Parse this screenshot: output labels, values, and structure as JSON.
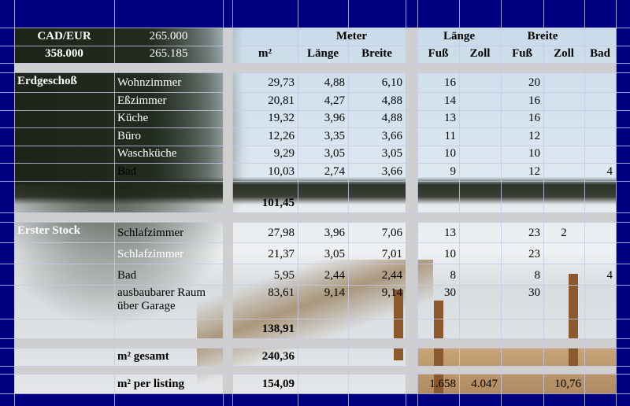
{
  "header": {
    "currency_label": "CAD/EUR",
    "value_top": "265.000",
    "value_cad": "358.000",
    "value_eur": "265.185",
    "group_meter": "Meter",
    "group_laenge": "Länge",
    "group_breite": "Breite",
    "columns": [
      "m²",
      "Länge",
      "Breite",
      "Fuß",
      "Zoll",
      "Fuß",
      "Zoll",
      "Bad"
    ]
  },
  "rows": [
    {
      "section": "Erdgeschoß",
      "room": "Wohnzimmer",
      "m2": "29,73",
      "m_laenge": "4,88",
      "m_breite": "6,10",
      "fuss_l": "16",
      "zoll_l": "",
      "fuss_b": "20",
      "zoll_b": "",
      "bad": ""
    },
    {
      "section": "",
      "room": "Eßzimmer",
      "m2": "20,81",
      "m_laenge": "4,27",
      "m_breite": "4,88",
      "fuss_l": "14",
      "zoll_l": "",
      "fuss_b": "16",
      "zoll_b": "",
      "bad": ""
    },
    {
      "section": "",
      "room": "Küche",
      "m2": "19,32",
      "m_laenge": "3,96",
      "m_breite": "4,88",
      "fuss_l": "13",
      "zoll_l": "",
      "fuss_b": "16",
      "zoll_b": "",
      "bad": ""
    },
    {
      "section": "",
      "room": "Büro",
      "m2": "12,26",
      "m_laenge": "3,35",
      "m_breite": "3,66",
      "fuss_l": "11",
      "zoll_l": "",
      "fuss_b": "12",
      "zoll_b": "",
      "bad": ""
    },
    {
      "section": "",
      "room": "Waschküche",
      "m2": "9,29",
      "m_laenge": "3,05",
      "m_breite": "3,05",
      "fuss_l": "10",
      "zoll_l": "",
      "fuss_b": "10",
      "zoll_b": "",
      "bad": ""
    },
    {
      "section": "",
      "room": "Bad",
      "m2": "10,03",
      "m_laenge": "2,74",
      "m_breite": "3,66",
      "fuss_l": "9",
      "zoll_l": "",
      "fuss_b": "12",
      "zoll_b": "",
      "bad": "4"
    },
    {
      "section": "",
      "room": "",
      "m2": "101,45",
      "m_laenge": "",
      "m_breite": "",
      "fuss_l": "",
      "zoll_l": "",
      "fuss_b": "",
      "zoll_b": "",
      "bad": ""
    },
    {
      "section": "Erster Stock",
      "room": "Schlafzimmer",
      "m2": "27,98",
      "m_laenge": "3,96",
      "m_breite": "7,06",
      "fuss_l": "13",
      "zoll_l": "",
      "fuss_b": "23",
      "zoll_b": "2",
      "bad": ""
    },
    {
      "section": "",
      "room": "Schlafzimmer",
      "m2": "21,37",
      "m_laenge": "3,05",
      "m_breite": "7,01",
      "fuss_l": "10",
      "zoll_l": "",
      "fuss_b": "23",
      "zoll_b": "",
      "bad": ""
    },
    {
      "section": "",
      "room": "Bad",
      "m2": "5,95",
      "m_laenge": "2,44",
      "m_breite": "2,44",
      "fuss_l": "8",
      "zoll_l": "",
      "fuss_b": "8",
      "zoll_b": "",
      "bad": "4"
    },
    {
      "section": "",
      "room": "ausbaubarer Raum über Garage",
      "m2": "83,61",
      "m_laenge": "9,14",
      "m_breite": "9,14",
      "fuss_l": "30",
      "zoll_l": "",
      "fuss_b": "30",
      "zoll_b": "",
      "bad": ""
    },
    {
      "section": "",
      "room": "",
      "m2": "138,91",
      "m_laenge": "",
      "m_breite": "",
      "fuss_l": "",
      "zoll_l": "",
      "fuss_b": "",
      "zoll_b": "",
      "bad": ""
    },
    {
      "section": "",
      "room": "m² gesamt",
      "m2": "240,36",
      "m_laenge": "",
      "m_breite": "",
      "fuss_l": "",
      "zoll_l": "",
      "fuss_b": "",
      "zoll_b": "",
      "bad": ""
    },
    {
      "section": "",
      "room": "m² per listing",
      "m2": "154,09",
      "m_laenge": "",
      "m_breite": "",
      "fuss_l": "1.658",
      "zoll_l": "4.047",
      "fuss_b": "",
      "zoll_b": "10,76",
      "bad": ""
    }
  ]
}
